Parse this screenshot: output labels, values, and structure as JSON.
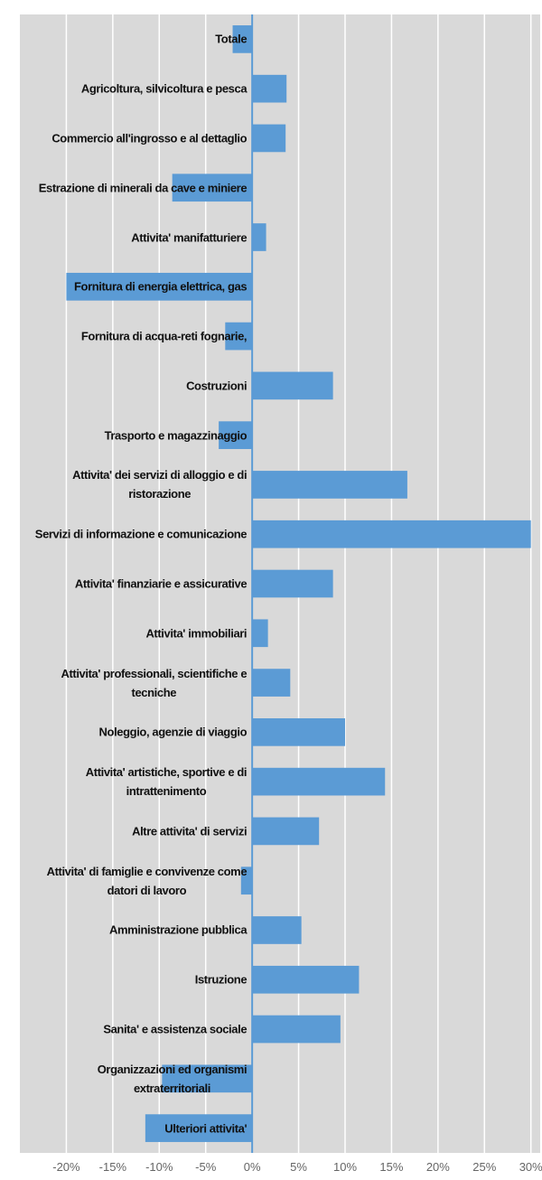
{
  "chart_data": {
    "type": "barh",
    "categories": [
      "Totale",
      "Agricoltura, silvicoltura e pesca",
      "Commercio all'ingrosso e al dettaglio",
      "Estrazione di minerali da cave e miniere",
      "Attivita' manifatturiere",
      "Fornitura di energia elettrica, gas",
      "Fornitura di acqua-reti fognarie,",
      "Costruzioni",
      "Trasporto e magazzinaggio",
      "Attivita' dei servizi di alloggio e di\nristorazione",
      "Servizi di informazione e comunicazione",
      "Attivita' finanziarie e assicurative",
      "Attivita' immobiliari",
      "Attivita' professionali, scientifiche e\ntecniche",
      "Noleggio, agenzie di viaggio",
      "Attivita' artistiche, sportive e di\nintrattenimento",
      "Altre attivita' di servizi",
      "Attivita' di famiglie e convivenze come\ndatori di lavoro",
      "Amministrazione pubblica",
      "Istruzione",
      "Sanita' e assistenza sociale",
      "Organizzazioni ed organismi\nextraterritoriali",
      "Ulteriori attivita'"
    ],
    "values": [
      -2.1,
      3.7,
      3.6,
      -8.6,
      1.5,
      -20,
      -2.9,
      8.7,
      -3.6,
      16.7,
      30,
      8.7,
      1.7,
      4.1,
      10,
      14.3,
      7.2,
      -1.2,
      5.3,
      11.5,
      9.5,
      -9.7,
      -11.5
    ],
    "color": "#5b9bd5",
    "xlim": [
      -25,
      31
    ],
    "xticks": [
      {
        "value": -20,
        "label": "-20%"
      },
      {
        "value": -15,
        "label": "-15%"
      },
      {
        "value": -10,
        "label": "-10%"
      },
      {
        "value": -5,
        "label": "-5%"
      },
      {
        "value": 0,
        "label": "0%"
      },
      {
        "value": 5,
        "label": "5%"
      },
      {
        "value": 10,
        "label": "10%"
      },
      {
        "value": 15,
        "label": "15%"
      },
      {
        "value": 20,
        "label": "20%"
      },
      {
        "value": 25,
        "label": "25%"
      },
      {
        "value": 30,
        "label": "30%"
      }
    ],
    "grid": true
  }
}
